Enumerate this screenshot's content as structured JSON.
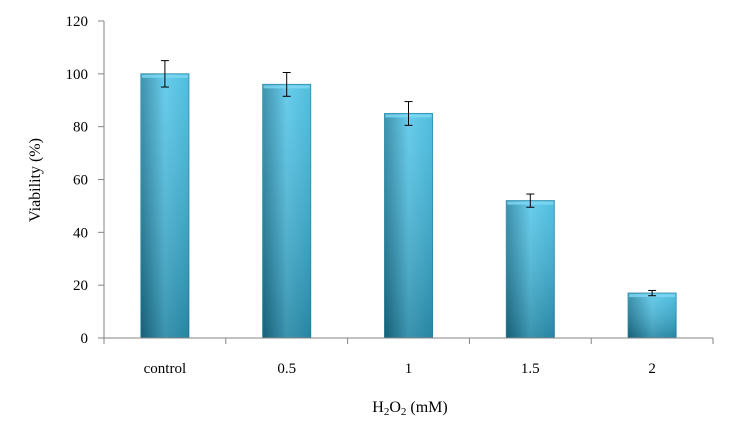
{
  "chart_data": {
    "type": "bar",
    "title": "",
    "xlabel": "H2O2 (mM)",
    "xlabel_parts": [
      {
        "text": "H",
        "sub": false
      },
      {
        "text": "2",
        "sub": true
      },
      {
        "text": "O",
        "sub": false
      },
      {
        "text": "2",
        "sub": true
      },
      {
        "text": " (mM)",
        "sub": false
      }
    ],
    "ylabel": "Viability (%)",
    "categories": [
      "control",
      "0.5",
      "1",
      "1.5",
      "2"
    ],
    "values": [
      100,
      96,
      85,
      52,
      17
    ],
    "errors": [
      5,
      4.5,
      4.5,
      2.5,
      1
    ],
    "ylim": [
      0,
      120
    ],
    "yticks": [
      0,
      20,
      40,
      60,
      80,
      100,
      120
    ],
    "grid": false,
    "legend": "none",
    "colors": {
      "bar_light": "#4ec4e8",
      "bar_mid": "#33b1d8",
      "bar_dark": "#1d7f9e",
      "bar_edge": "#2b8fb0",
      "axis": "#868686"
    }
  }
}
